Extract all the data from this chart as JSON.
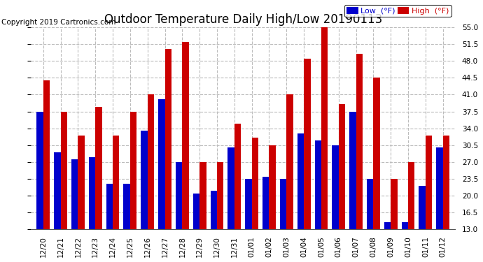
{
  "title": "Outdoor Temperature Daily High/Low 20190113",
  "copyright": "Copyright 2019 Cartronics.com",
  "legend_low": "Low  (°F)",
  "legend_high": "High  (°F)",
  "dates": [
    "12/20",
    "12/21",
    "12/22",
    "12/23",
    "12/24",
    "12/25",
    "12/26",
    "12/27",
    "12/28",
    "12/29",
    "12/30",
    "12/31",
    "01/01",
    "01/02",
    "01/03",
    "01/04",
    "01/05",
    "01/06",
    "01/07",
    "01/08",
    "01/09",
    "01/10",
    "01/11",
    "01/12"
  ],
  "low": [
    37.5,
    29.0,
    27.5,
    28.0,
    22.5,
    22.5,
    33.5,
    40.0,
    27.0,
    20.5,
    21.0,
    30.0,
    23.5,
    24.0,
    23.5,
    33.0,
    31.5,
    30.5,
    37.5,
    23.5,
    14.5,
    14.5,
    22.0,
    30.0
  ],
  "high": [
    44.0,
    37.5,
    32.5,
    38.5,
    32.5,
    37.5,
    41.0,
    50.5,
    52.0,
    27.0,
    27.0,
    35.0,
    32.0,
    30.5,
    41.0,
    48.5,
    55.0,
    39.0,
    49.5,
    44.5,
    23.5,
    27.0,
    32.5,
    32.5
  ],
  "ylim_min": 13.0,
  "ylim_max": 55.0,
  "yticks": [
    13.0,
    16.5,
    20.0,
    23.5,
    27.0,
    30.5,
    34.0,
    37.5,
    41.0,
    44.5,
    48.0,
    51.5,
    55.0
  ],
  "bar_width": 0.38,
  "low_color": "#0000cc",
  "high_color": "#cc0000",
  "bg_color": "#ffffff",
  "grid_color": "#bbbbbb",
  "title_fontsize": 12,
  "tick_fontsize": 7.5,
  "copyright_fontsize": 7.5
}
